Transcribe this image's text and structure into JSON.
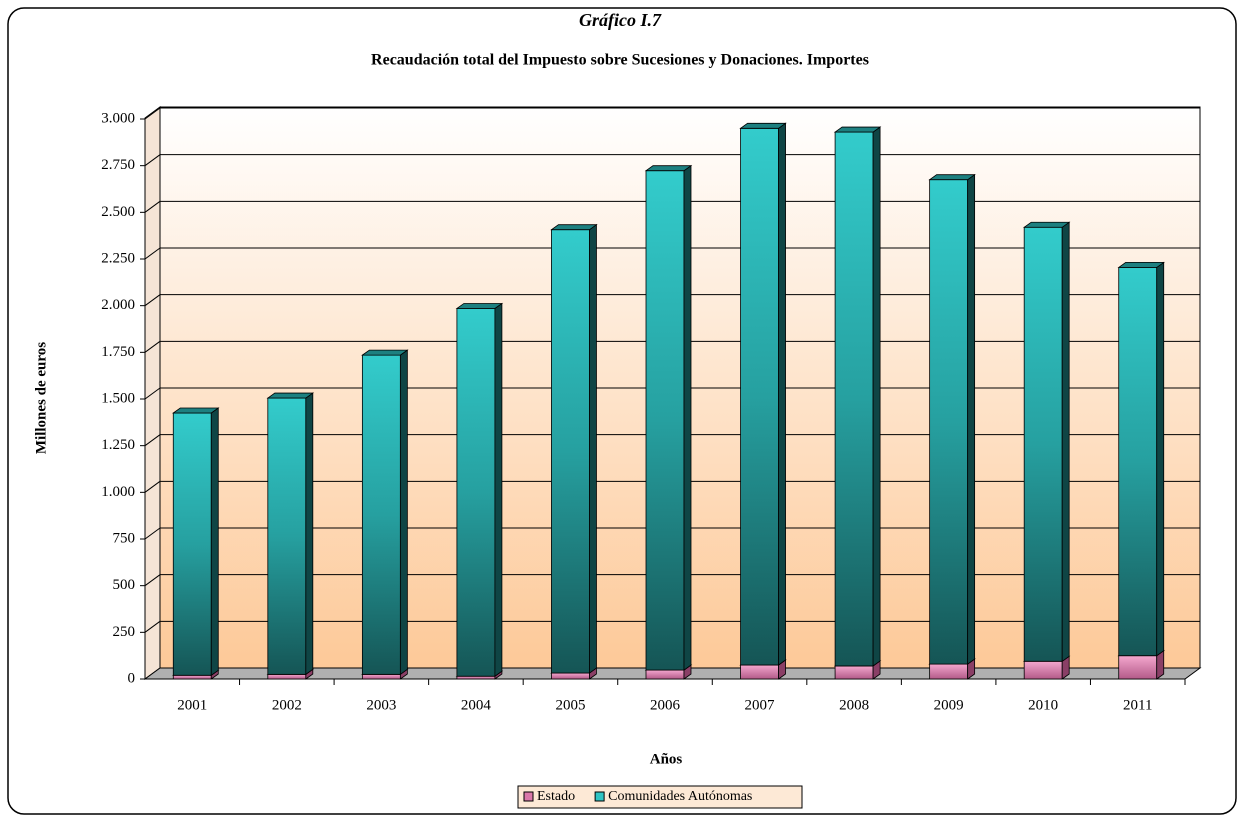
{
  "chart_data": {
    "type": "bar",
    "stacked": true,
    "title": "Gráfico I.7",
    "subtitle": "Recaudación total del Impuesto sobre Sucesiones y Donaciones.  Importes",
    "y_label": "Millones de euros",
    "x_label": "Años",
    "categories": [
      "2001",
      "2002",
      "2003",
      "2004",
      "2005",
      "2006",
      "2007",
      "2008",
      "2009",
      "2010",
      "2011"
    ],
    "series": [
      {
        "name": "Estado",
        "color": "#d977aa",
        "values": [
          20,
          25,
          25,
          15,
          32,
          48,
          75,
          70,
          80,
          95,
          125
        ]
      },
      {
        "name": "Comunidades Autónomas",
        "color": "#2fc4c4",
        "values": [
          1405,
          1480,
          1710,
          1970,
          2375,
          2675,
          2875,
          2860,
          2595,
          2325,
          2080
        ]
      }
    ],
    "ylim": [
      0,
      3000
    ],
    "yticks": [
      0,
      250,
      500,
      750,
      {
        "value": 1000,
        "label": "1.000"
      },
      {
        "value": 1250,
        "label": "1.250"
      },
      {
        "value": 1500,
        "label": "1.500"
      },
      {
        "value": 1750,
        "label": "1.750"
      },
      {
        "value": 2000,
        "label": "2.000"
      },
      {
        "value": 2250,
        "label": "2.250"
      },
      {
        "value": 2500,
        "label": "2.500"
      },
      {
        "value": 2750,
        "label": "2.750"
      },
      {
        "value": 3000,
        "label": "3.000"
      }
    ],
    "grid": true,
    "legend": "bottom"
  }
}
